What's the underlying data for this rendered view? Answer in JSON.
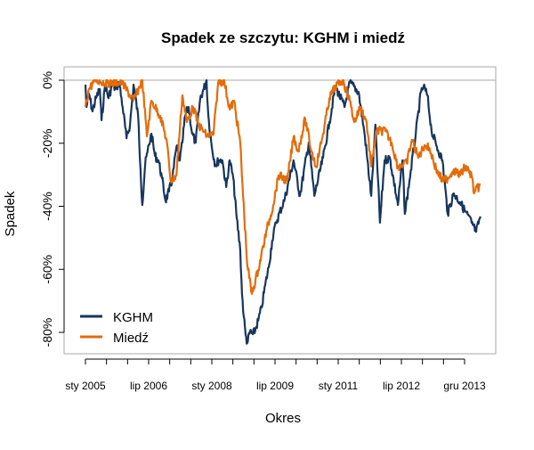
{
  "chart_data": {
    "type": "line",
    "title": "Spadek ze szczytu: KGHM i miedź",
    "xlabel": "Okres",
    "ylabel": "Spadek",
    "x_unit": "months since January 2005",
    "ylim": [
      -88,
      4
    ],
    "xlim": [
      -6,
      117
    ],
    "yticks": [
      0,
      -20,
      -40,
      -60,
      -80
    ],
    "ytick_labels": [
      "0%",
      "-20%",
      "-40%",
      "-60%",
      "-80%"
    ],
    "xticks_major": [
      0,
      18,
      36,
      54,
      72,
      90,
      108
    ],
    "xtick_labels": [
      "sty 2005",
      "lip 2006",
      "sty 2008",
      "lip 2009",
      "sty 2011",
      "lip 2012",
      "gru 2013"
    ],
    "xticks_minor": [
      6,
      12,
      24,
      30,
      42,
      48,
      60,
      66,
      78,
      84,
      96,
      102
    ],
    "reference_line": 0,
    "legend_position": "bottom-left",
    "grid": false,
    "series": [
      {
        "name": "KGHM",
        "color": "#17365D",
        "x": [
          0,
          0.3,
          1,
          2,
          3,
          4.1,
          4.6,
          5.6,
          6.6,
          7.6,
          8.6,
          9.6,
          10.6,
          11.7,
          12.7,
          13.7,
          15,
          15.7,
          16.2,
          17,
          17.7,
          18.8,
          19.8,
          20.8,
          21.8,
          22.8,
          23.8,
          24.8,
          25.9,
          26.9,
          27.6,
          28.4,
          29.4,
          30.4,
          31.4,
          32.7,
          33.7,
          34.5,
          35,
          36,
          37,
          38,
          39,
          40.1,
          41.1,
          42.1,
          43.1,
          44.1,
          44.6,
          45.1,
          45.6,
          46.1,
          46.9,
          47.7,
          48.4,
          49.2,
          50.2,
          51.2,
          52.2,
          53.2,
          54.3,
          56.8,
          59.3,
          61.1,
          63.6,
          65.2,
          67.7,
          69.5,
          71.2,
          73.8,
          75.3,
          77.8,
          79.6,
          81.4,
          82.6,
          83.9,
          85.2,
          86.7,
          89,
          90.3,
          91,
          92.3,
          94.1,
          95.6,
          96.3,
          97.4,
          98.6,
          99.9,
          101.7,
          103.2,
          104.9,
          106.7,
          108.2,
          110,
          111.3,
          112.5
        ],
        "y": [
          -1.4,
          -8.5,
          -4.2,
          -9.9,
          -5.7,
          -2.8,
          -12.7,
          -1.4,
          -5.7,
          -1.4,
          -2.8,
          -0.6,
          -8.5,
          -18.4,
          -14.1,
          -1.4,
          -11.3,
          -28.3,
          -39.6,
          -26.9,
          -22.6,
          -17,
          -24,
          -25.4,
          -31.1,
          -38.2,
          -35.3,
          -31.1,
          -21.2,
          -25.4,
          -19.8,
          -11.3,
          -8.5,
          -17,
          -19.8,
          -5.7,
          -2.8,
          0,
          -11.3,
          -21.2,
          -26.9,
          -25.4,
          -25.4,
          -33.9,
          -25.4,
          -31.1,
          -43.8,
          -53.7,
          -67.8,
          -74.9,
          -80.6,
          -83.4,
          -79.7,
          -80.6,
          -79.2,
          -76.3,
          -72.1,
          -65,
          -59.4,
          -50.9,
          -45.2,
          -37.6,
          -25.4,
          -36.7,
          -19.8,
          -36.7,
          -24.6,
          -13.3,
          -2,
          -8.5,
          -0.8,
          -3.7,
          -17.8,
          -36.7,
          -14.1,
          -45.2,
          -25.4,
          -24.6,
          -39.6,
          -25.4,
          -42.4,
          -31.9,
          -17,
          -3.7,
          -2,
          -4.8,
          -16.1,
          -20.6,
          -25.4,
          -42.4,
          -35.9,
          -38.7,
          -41.6,
          -45.2,
          -48.1,
          -43.2
        ]
      },
      {
        "name": "Miedź",
        "color": "#E46C0A",
        "x": [
          0,
          1,
          2.8,
          6.1,
          10.4,
          13.7,
          16.2,
          17.5,
          18.8,
          21.3,
          23.1,
          24.3,
          25.9,
          27.6,
          28.9,
          30.7,
          32.2,
          34.7,
          36.5,
          37.8,
          39.5,
          41.1,
          42.3,
          44.1,
          44.9,
          46.1,
          47.4,
          49.2,
          51.7,
          53.5,
          55,
          57.5,
          59.3,
          60.6,
          62.6,
          64.4,
          65.7,
          67.7,
          69.5,
          71.2,
          73.3,
          75.3,
          76.6,
          78.3,
          80.1,
          81.4,
          82.9,
          85.4,
          87.2,
          89,
          91.5,
          93,
          94.8,
          96.6,
          98.1,
          99.9,
          101.7,
          103.2,
          104.9,
          106.7,
          108.2,
          110,
          110.7,
          112.5
        ],
        "y": [
          -8.5,
          -2.8,
          0,
          -0.8,
          -0.8,
          -6.5,
          0,
          -17.8,
          -6.5,
          -11.3,
          -18.9,
          -31.9,
          -30.2,
          -4.8,
          -13.3,
          -8.5,
          -14.1,
          -17.8,
          -17,
          -0.8,
          0,
          -9.3,
          -6.5,
          -19.8,
          -36.7,
          -58.5,
          -67.8,
          -60.2,
          -47.2,
          -39.6,
          -30.2,
          -31.9,
          -17.8,
          -22.6,
          -12.2,
          -22.6,
          -27.4,
          -17,
          -5.7,
          -2,
          0,
          -6.5,
          -13.3,
          -8.5,
          -13.3,
          -27.4,
          -16.1,
          -16.1,
          -19.8,
          -27.4,
          -26.3,
          -18.9,
          -24.6,
          -20.6,
          -21.8,
          -28.3,
          -31.9,
          -31.1,
          -28.3,
          -30.2,
          -27.4,
          -30.2,
          -35.9,
          -33.1
        ]
      }
    ]
  }
}
